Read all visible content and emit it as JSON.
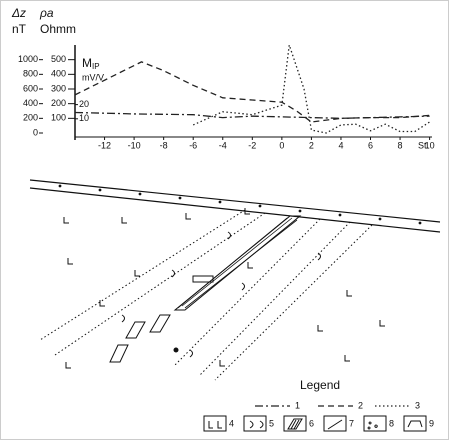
{
  "chart_data": {
    "type": "line",
    "y_label_top": "Δz",
    "y_label_unit": "nT",
    "y2_label_top": "ρa",
    "y2_label_unit": "Ohmm",
    "y3_label_main": "M",
    "y3_label_sub": "IP",
    "y3_label_unit": "mV/V",
    "x_label": "St.",
    "xlim": [
      -14,
      10.5
    ],
    "xticks": [
      -12,
      -10,
      -8,
      -6,
      -4,
      -2,
      0,
      2,
      4,
      6,
      8,
      10
    ],
    "ylim": [
      0,
      1200
    ],
    "yticks": [
      0,
      200,
      400,
      600,
      800,
      1000
    ],
    "y2lim": [
      0,
      600
    ],
    "y2ticks": [
      100,
      200,
      300,
      400,
      500
    ],
    "y3lim": [
      0,
      62
    ],
    "y3ticks": [
      10,
      20
    ],
    "series": [
      {
        "name": "1",
        "color": "#222",
        "dash": "8 3 2 3",
        "x": [
          -14,
          -10,
          -6,
          -4,
          -2,
          0,
          2,
          4,
          6,
          8,
          10
        ],
        "values": [
          280,
          260,
          250,
          210,
          230,
          220,
          210,
          200,
          210,
          220,
          230
        ]
      },
      {
        "name": "2",
        "color": "#222",
        "dash": "6 4",
        "x": [
          -14,
          -9.5,
          -8,
          -6,
          -4,
          -2,
          0,
          1,
          2,
          4,
          6,
          8,
          10
        ],
        "values": [
          520,
          970,
          850,
          650,
          480,
          450,
          420,
          300,
          150,
          200,
          210,
          210,
          240
        ]
      },
      {
        "name": "3",
        "color": "#222",
        "dash": "1.5 2.5",
        "x": [
          -6,
          -4,
          -2,
          0,
          0.5,
          1.5,
          2,
          3,
          4,
          5,
          6,
          7,
          8,
          9,
          10
        ],
        "values": [
          110,
          290,
          250,
          380,
          1200,
          600,
          40,
          0,
          110,
          120,
          30,
          120,
          20,
          20,
          150
        ]
      }
    ]
  },
  "section": {
    "legend_title": "Legend",
    "symbols": [
      "4",
      "5",
      "6",
      "7",
      "8",
      "9"
    ]
  }
}
